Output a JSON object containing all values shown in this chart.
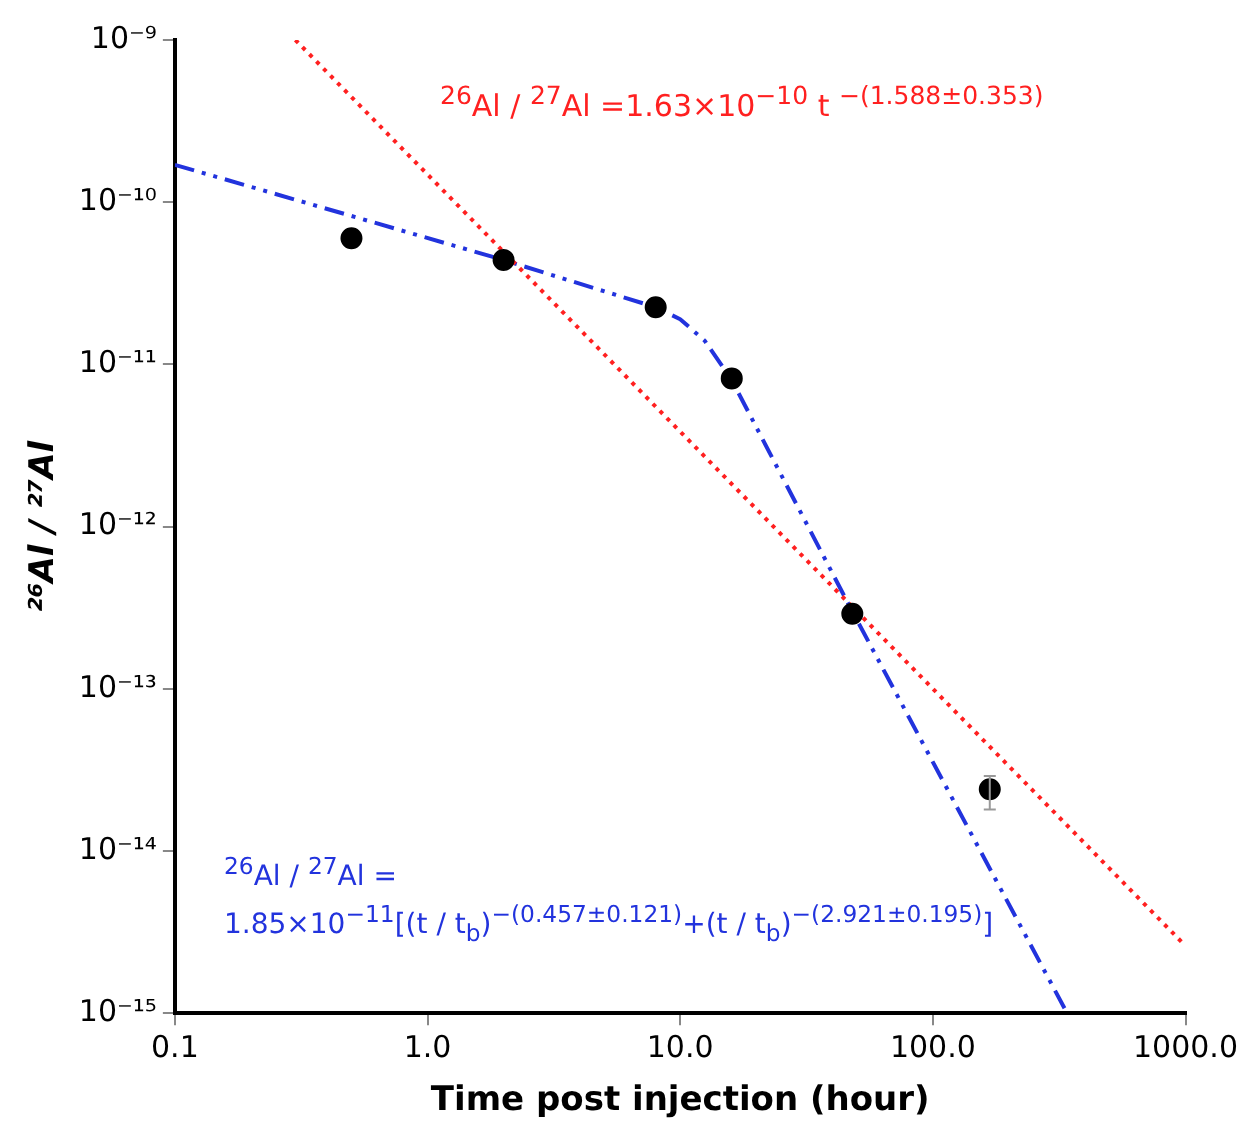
{
  "chart_data": {
    "type": "scatter",
    "xlabel": "Time post injection (hour)",
    "ylabel": "²⁶Al / ²⁷Al",
    "log": "xy",
    "grid": false,
    "legend": false,
    "marker": "circle",
    "xlim": [
      0.1,
      1000
    ],
    "xticks": [
      {
        "value": 0.1,
        "label": "0.1"
      },
      {
        "value": 1,
        "label": "1.0"
      },
      {
        "value": 10,
        "label": "10.0"
      },
      {
        "value": 100,
        "label": "100.0"
      },
      {
        "value": 1000,
        "label": "1000.0"
      }
    ],
    "ylim": [
      1e-15,
      1e-09
    ],
    "yticks": [
      {
        "value": 1e-15,
        "label": "10⁻¹⁵"
      },
      {
        "value": 1e-14,
        "label": "10⁻¹⁴"
      },
      {
        "value": 1e-13,
        "label": "10⁻¹³"
      },
      {
        "value": 1e-12,
        "label": "10⁻¹²"
      },
      {
        "value": 1e-11,
        "label": "10⁻¹¹"
      },
      {
        "value": 1e-10,
        "label": "10⁻¹⁰"
      },
      {
        "value": 1e-09,
        "label": "10⁻⁹"
      }
    ],
    "series": [
      {
        "color": "#000000",
        "x": [
          0.5,
          2,
          8,
          16,
          48,
          168
        ],
        "values": [
          6e-11,
          4.4e-11,
          2.25e-11,
          8.2e-12,
          2.9e-13,
          2.4e-14
        ],
        "errors": [
          null,
          null,
          null,
          null,
          null,
          [
            1.8e-14,
            2.9e-14
          ]
        ]
      },
      {
        "type": "line",
        "color": "#ff2020",
        "line_style": "dotted",
        "marker": "none",
        "x": [
          0.3,
          1000
        ],
        "values": [
          1e-09,
          2.6e-15
        ]
      },
      {
        "type": "line",
        "color": "#2233dd",
        "line_style": "dashed",
        "marker": "none",
        "x": [
          0.1,
          2,
          8,
          10,
          12.5,
          16,
          48,
          340
        ],
        "values": [
          1.7e-10,
          4.4e-11,
          2.25e-11,
          1.9e-11,
          1.4e-11,
          8e-12,
          3e-13,
          1e-15
        ]
      }
    ],
    "annotations": [
      "$^{26}$Al / $^{27}$Al =1.63×10$^{−10}$ t $^{−(1.588±0.353)}$",
      "$^{26}$Al / $^{27}$Al =",
      "1.85×10$^{−11}$[(t / t$_{b}$)$^{−(0.457±0.121)}$+(t / t$_{b}$)$^{−(2.921±0.195)}$]"
    ]
  }
}
